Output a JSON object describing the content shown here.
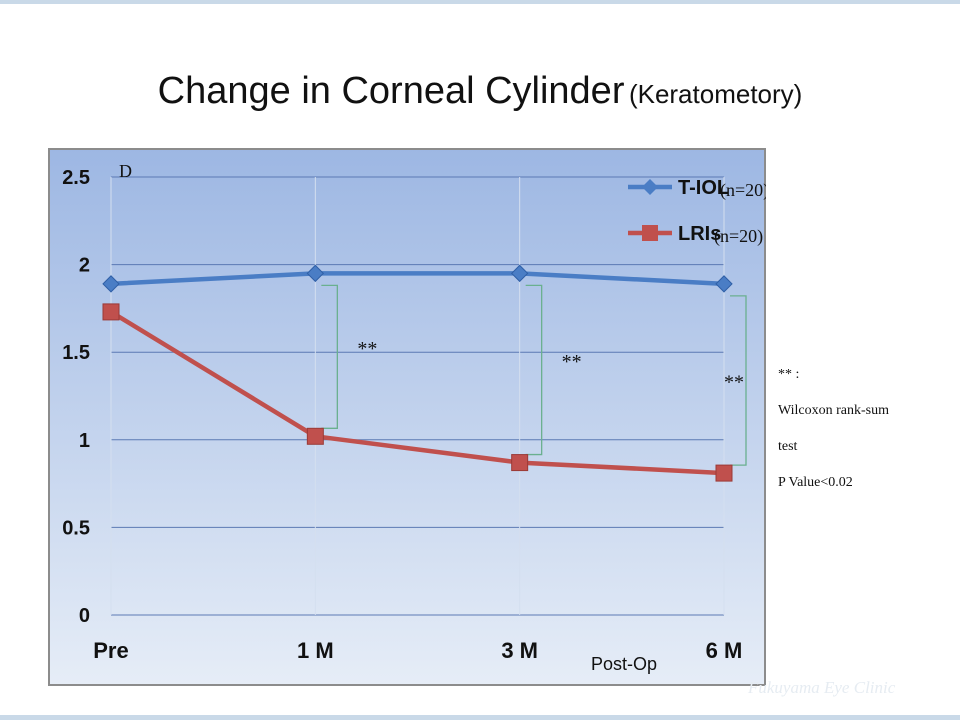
{
  "slide": {
    "title_main": "Change in Corneal Cylinder",
    "title_sub": "(Keratometory)",
    "note_lines": [
      "** :",
      "Wilcoxon rank-sum",
      "test",
      "P Value<0.02"
    ],
    "watermark": "Fukuyama Eye Clinic"
  },
  "chart_data": {
    "type": "line",
    "title": "Change in Corneal Cylinder (Keratometory)",
    "ylabel": "D",
    "xlabel": "Post-Op",
    "categories": [
      "Pre",
      "1 M",
      "3 M",
      "6 M"
    ],
    "ylim": [
      0,
      2.5
    ],
    "yticks": [
      "0",
      "0.5",
      "1",
      "1.5",
      "2",
      "2.5"
    ],
    "grid": true,
    "legend_position": "top-right",
    "series": [
      {
        "name": "T-IOL",
        "n_label": "(n=20)",
        "values": [
          1.89,
          1.95,
          1.95,
          1.89
        ],
        "color": "#4a7dc5",
        "marker": "diamond"
      },
      {
        "name": "LRIs",
        "n_label": "(n=20)",
        "values": [
          1.73,
          1.02,
          0.87,
          0.81
        ],
        "color": "#c0504d",
        "marker": "square"
      }
    ],
    "significance": [
      {
        "category": "1 M",
        "label": "**"
      },
      {
        "category": "3 M",
        "label": "**"
      },
      {
        "category": "6 M",
        "label": "**"
      }
    ],
    "colors": {
      "plot_top": "#9db7e3",
      "plot_bottom": "#e6edf7",
      "grid": "#5b79b3",
      "bracket": "#6ab08f"
    }
  }
}
